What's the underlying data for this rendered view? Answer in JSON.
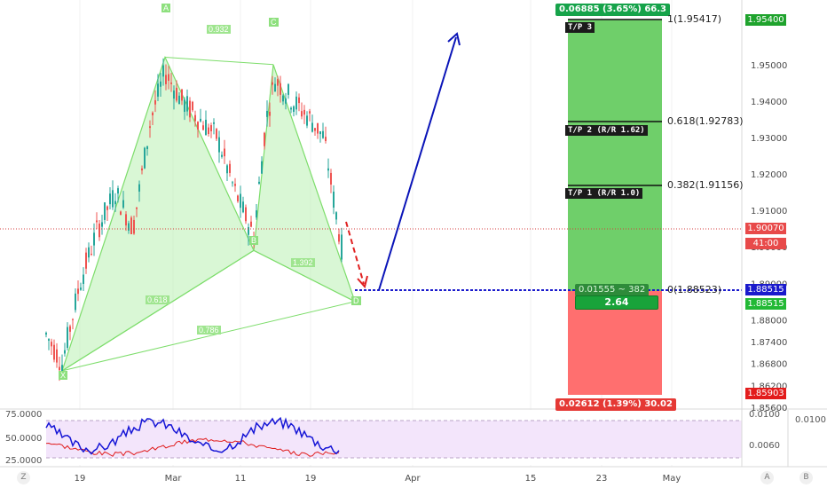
{
  "colors": {
    "up": "#26a69a",
    "down": "#ef5350",
    "pattern_fill": "#b9f0b2",
    "pattern_line": "#7ddd6b",
    "profit_zone": "#6fcf6a",
    "loss_zone": "#ff6f6f",
    "entry_line": "#1a1acc",
    "projection": "#0a14b8",
    "rsi_blue": "#1515d6",
    "rsi_red": "#e01b1b",
    "rsi_band": "#f3e5fb",
    "price_line": "#d63c3c"
  },
  "price_axis": {
    "ticks": [
      "1.95000",
      "1.94000",
      "1.93000",
      "1.92000",
      "1.91000",
      "1.90000",
      "1.89000",
      "1.88000",
      "1.87400",
      "1.86800",
      "1.86200",
      "1.85600"
    ],
    "tags": {
      "tp3": "1.95400",
      "last_price": "1.90070",
      "countdown": "41:00",
      "entry": "1.88515",
      "entry2": "1.88515",
      "stop": "1.85903"
    }
  },
  "rsi_axis": {
    "left_ticks": [
      "75.0000",
      "50.0000",
      "25.0000"
    ],
    "right_ticks": [
      "0.0100",
      "0.0060"
    ],
    "far_right": "0.0100"
  },
  "time_axis": {
    "labels": [
      "19",
      "Mar",
      "11",
      "19",
      "Apr",
      "15",
      "23",
      "May"
    ]
  },
  "pattern": {
    "points": [
      "X",
      "A",
      "B",
      "C",
      "D"
    ],
    "ratios": [
      "0.932",
      "0.618",
      "1.392",
      "0.786"
    ]
  },
  "position": {
    "profit_label": "0.06885 (3.65%) 66.3",
    "loss_label": "0.02612 (1.39%) 30.02",
    "entry_label": "0.01555 ~ 382",
    "rr_label": "2.64",
    "targets": [
      {
        "tag": "T/P 3",
        "level": "1(1.95417)"
      },
      {
        "tag": "T/P 2 (R/R 1.62)",
        "level": "0.618(1.92783)"
      },
      {
        "tag": "T/P 1 (R/R 1.0)",
        "level": "0.382(1.91156)"
      }
    ],
    "entry_level": "0(1.88523)"
  },
  "chart_data": {
    "type": "candlestick",
    "symbol_pair_note": "",
    "price_range": [
      1.856,
      1.957
    ],
    "harmonic_points": [
      {
        "name": "X",
        "price": 1.866
      },
      {
        "name": "A",
        "price": 1.952
      },
      {
        "name": "B",
        "price": 1.899
      },
      {
        "name": "C",
        "price": 1.95
      },
      {
        "name": "D",
        "price": 1.885
      }
    ],
    "levels": {
      "tp3": 1.95417,
      "tp2": 1.92783,
      "tp1": 1.91156,
      "entry": 1.88523,
      "last": 1.9007,
      "stop": 1.85903
    }
  }
}
